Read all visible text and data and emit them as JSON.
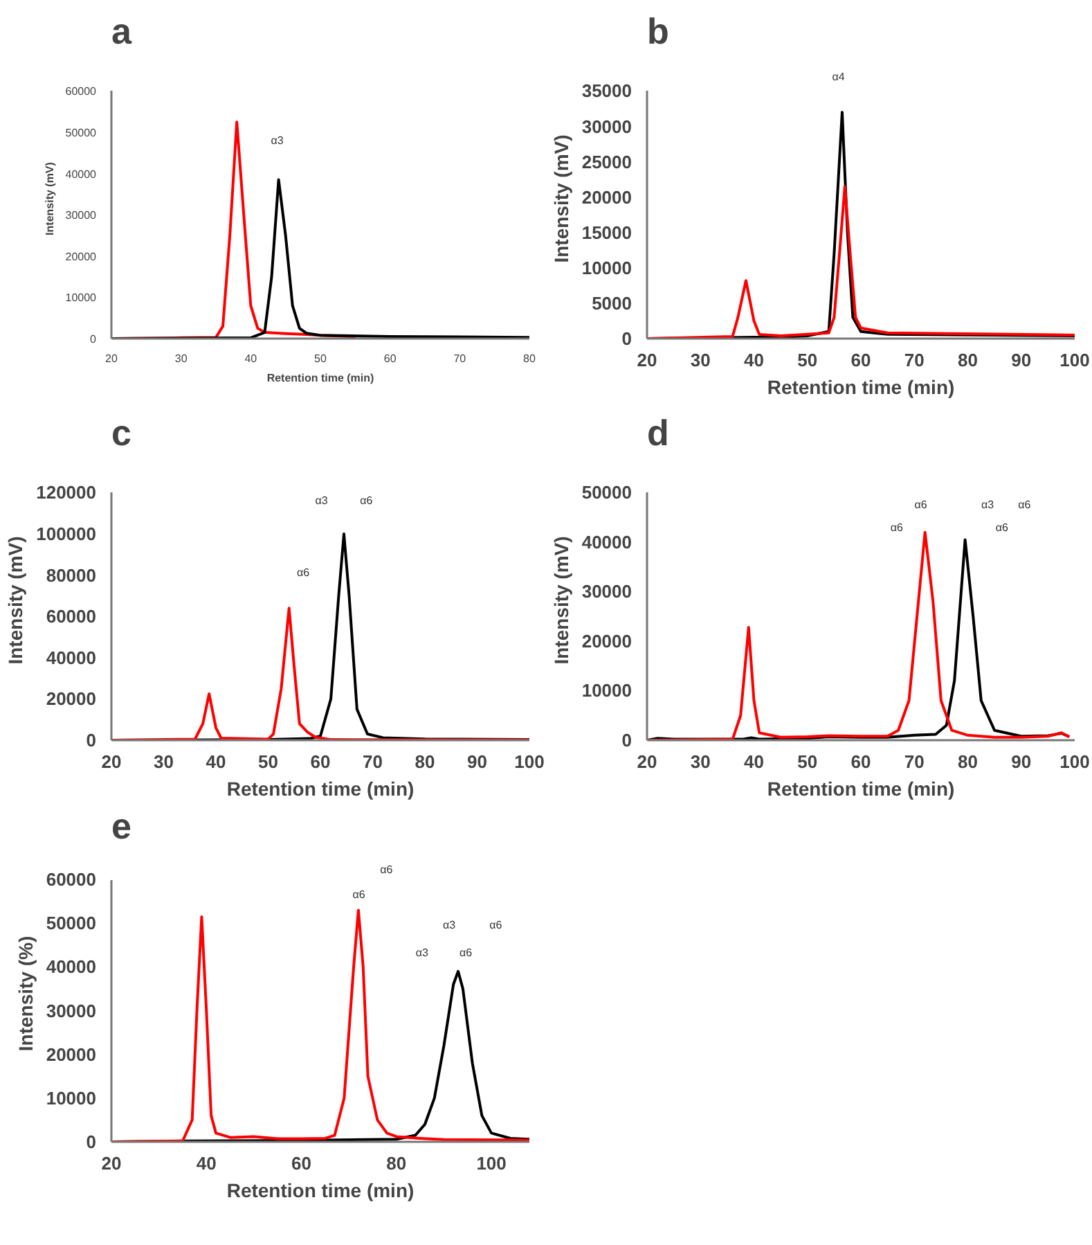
{
  "chart_data": [
    {
      "type": "line",
      "title": "a",
      "xlabel": "Retention time (min)",
      "ylabel": "Intensity (mV)",
      "xlim": [
        20,
        80
      ],
      "ylim": [
        0,
        60000
      ],
      "xticks": [
        20,
        30,
        40,
        50,
        60,
        70,
        80
      ],
      "yticks": [
        0,
        10000,
        20000,
        30000,
        40000,
        50000,
        60000
      ],
      "grid": false,
      "annotations": [
        "α3"
      ],
      "series": [
        {
          "color": "#ff0000",
          "x": [
            20,
            30,
            35,
            36,
            37,
            38,
            39,
            40,
            41,
            42,
            45,
            48,
            50,
            55
          ],
          "values": [
            0,
            200,
            300,
            3000,
            25000,
            52500,
            30000,
            8000,
            2500,
            1500,
            1200,
            1000,
            800,
            500
          ]
        },
        {
          "color": "#000000",
          "x": [
            20,
            30,
            40,
            42,
            43,
            44,
            45,
            46,
            47,
            48,
            50,
            60,
            70,
            80
          ],
          "values": [
            0,
            100,
            200,
            1500,
            15000,
            38500,
            25000,
            8000,
            2500,
            1300,
            800,
            500,
            400,
            300
          ]
        }
      ]
    },
    {
      "type": "line",
      "title": "b",
      "xlabel": "Retention time (min)",
      "ylabel": "Intensity (mV)",
      "xlim": [
        20,
        100
      ],
      "ylim": [
        0,
        35000
      ],
      "xticks": [
        20,
        30,
        40,
        50,
        60,
        70,
        80,
        90,
        100
      ],
      "yticks": [
        0,
        5000,
        10000,
        15000,
        20000,
        25000,
        30000,
        35000
      ],
      "grid": false,
      "annotations": [
        "α4"
      ],
      "series": [
        {
          "color": "#000000",
          "x": [
            20,
            40,
            45,
            50,
            54,
            55,
            56.5,
            57.5,
            58.5,
            60,
            65,
            100
          ],
          "values": [
            0,
            200,
            200,
            400,
            1000,
            12000,
            32000,
            15000,
            3000,
            1000,
            600,
            400
          ]
        },
        {
          "color": "#ff0000",
          "x": [
            20,
            36,
            37,
            38.5,
            40,
            41,
            45,
            50,
            54,
            55,
            56,
            57,
            58,
            59,
            60,
            65,
            100
          ],
          "values": [
            0,
            300,
            3000,
            8200,
            2500,
            600,
            400,
            600,
            800,
            3000,
            12000,
            21500,
            12000,
            3000,
            1500,
            800,
            500
          ]
        }
      ]
    },
    {
      "type": "line",
      "title": "c",
      "xlabel": "Retention time (min)",
      "ylabel": "Intensity (mV)",
      "xlim": [
        20,
        100
      ],
      "ylim": [
        0,
        120000
      ],
      "xticks": [
        20,
        30,
        40,
        50,
        60,
        70,
        80,
        90,
        100
      ],
      "yticks": [
        0,
        20000,
        40000,
        60000,
        80000,
        100000,
        120000
      ],
      "grid": false,
      "annotations": [
        "α6",
        "α3",
        "α6"
      ],
      "series": [
        {
          "color": "#000000",
          "x": [
            20,
            50,
            58,
            60,
            62,
            63.5,
            64.5,
            65.5,
            67,
            69,
            72,
            80,
            100
          ],
          "values": [
            0,
            300,
            800,
            2000,
            20000,
            70000,
            100000,
            70000,
            15000,
            3000,
            1200,
            600,
            300
          ]
        },
        {
          "color": "#ff0000",
          "x": [
            20,
            36,
            37.5,
            38.7,
            40,
            41,
            50,
            51,
            52.5,
            54,
            55,
            56,
            57.5,
            59,
            62,
            100
          ],
          "values": [
            0,
            500,
            8000,
            22500,
            6000,
            1000,
            500,
            3000,
            25000,
            64000,
            35000,
            8000,
            4000,
            1500,
            300,
            200
          ]
        }
      ]
    },
    {
      "type": "line",
      "title": "d",
      "xlabel": "Retention time (min)",
      "ylabel": "Intensity (mV)",
      "xlim": [
        20,
        100
      ],
      "ylim": [
        0,
        50000
      ],
      "xticks": [
        20,
        30,
        40,
        50,
        60,
        70,
        80,
        90,
        100
      ],
      "yticks": [
        0,
        10000,
        20000,
        30000,
        40000,
        50000
      ],
      "grid": false,
      "annotations": [
        "α6",
        "α6",
        "α3",
        "α6",
        "α6"
      ],
      "series": [
        {
          "color": "#000000",
          "x": [
            20,
            22,
            25,
            38,
            39.5,
            41,
            50,
            54,
            60,
            65,
            70,
            74,
            76,
            77.5,
            79.5,
            81,
            82.5,
            85,
            90,
            95,
            97.5,
            99
          ],
          "values": [
            0,
            400,
            200,
            200,
            500,
            200,
            400,
            700,
            600,
            600,
            1000,
            1200,
            3000,
            12000,
            40500,
            25000,
            8000,
            2000,
            800,
            900,
            1400,
            700
          ]
        },
        {
          "color": "#ff0000",
          "x": [
            20,
            36,
            37.5,
            39,
            40,
            41,
            45,
            50,
            54,
            60,
            65,
            67,
            69,
            70.5,
            72,
            73.5,
            75,
            77,
            80,
            85,
            90,
            95,
            97.5,
            99
          ],
          "values": [
            0,
            200,
            5000,
            22800,
            8000,
            1500,
            600,
            700,
            900,
            800,
            800,
            2000,
            8000,
            25000,
            42000,
            28000,
            8000,
            2000,
            1000,
            600,
            600,
            800,
            1500,
            700
          ]
        }
      ]
    },
    {
      "type": "line",
      "title": "e",
      "xlabel": "Retention time (min)",
      "ylabel": "Intensity (%)",
      "xlim": [
        20,
        108
      ],
      "ylim": [
        0,
        60000
      ],
      "xticks": [
        20,
        40,
        60,
        80,
        100
      ],
      "yticks": [
        0,
        10000,
        20000,
        30000,
        40000,
        50000,
        60000
      ],
      "grid": false,
      "annotations": [
        "α6",
        "α6",
        "α3",
        "α6",
        "α3",
        "α6"
      ],
      "series": [
        {
          "color": "#000000",
          "x": [
            20,
            36,
            60,
            80,
            84,
            86,
            88,
            90,
            92,
            93,
            94,
            96,
            98,
            100,
            104,
            108
          ],
          "values": [
            0,
            200,
            300,
            600,
            1500,
            4000,
            10000,
            22000,
            36000,
            39000,
            35000,
            18000,
            6000,
            2000,
            800,
            600
          ]
        },
        {
          "color": "#ff0000",
          "x": [
            20,
            35,
            37,
            38,
            39,
            40,
            41,
            42,
            45,
            50,
            55,
            60,
            65,
            67,
            69,
            71,
            72,
            73,
            74,
            76,
            78,
            80,
            85,
            90,
            108
          ],
          "values": [
            0,
            200,
            5000,
            30000,
            51500,
            30000,
            6000,
            2000,
            1000,
            1200,
            700,
            700,
            800,
            1500,
            10000,
            40000,
            53000,
            40000,
            15000,
            5000,
            2000,
            1200,
            800,
            500,
            400
          ]
        }
      ]
    }
  ]
}
